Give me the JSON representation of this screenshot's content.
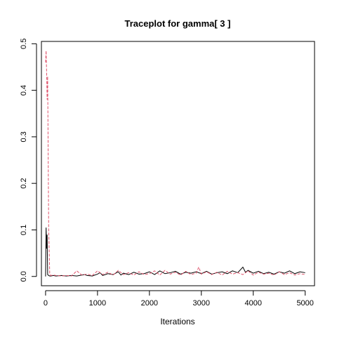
{
  "chart_data": {
    "type": "line",
    "title": "Traceplot for gamma[ 3 ]",
    "xlabel": "Iterations",
    "ylabel": "",
    "xlim": [
      -80,
      5180
    ],
    "ylim": [
      -0.02,
      0.505
    ],
    "x_ticks": [
      0,
      1000,
      2000,
      3000,
      4000,
      5000
    ],
    "x_tick_labels": [
      "0",
      "1000",
      "2000",
      "3000",
      "4000",
      "5000"
    ],
    "y_ticks": [
      0.0,
      0.1,
      0.2,
      0.3,
      0.4,
      0.5
    ],
    "y_tick_labels": [
      "0.0",
      "0.1",
      "0.2",
      "0.3",
      "0.4",
      "0.5"
    ],
    "grid": false,
    "legend": "none",
    "series": [
      {
        "color": "#000000",
        "dash": "solid",
        "x": [
          0,
          10,
          20,
          30,
          40,
          60,
          80,
          100,
          150,
          200,
          300,
          400,
          500,
          600,
          700,
          750,
          800,
          900,
          1000,
          1050,
          1100,
          1200,
          1300,
          1400,
          1450,
          1500,
          1600,
          1700,
          1800,
          1900,
          2000,
          2100,
          2200,
          2300,
          2400,
          2500,
          2600,
          2700,
          2800,
          2900,
          3000,
          3100,
          3200,
          3300,
          3400,
          3500,
          3600,
          3700,
          3800,
          3850,
          3900,
          4000,
          4100,
          4200,
          4300,
          4400,
          4500,
          4600,
          4700,
          4800,
          4900,
          5000
        ],
        "values": [
          0.0,
          0.105,
          0.06,
          0.09,
          0.004,
          0.002,
          0.001,
          0.001,
          0.002,
          0.001,
          0.002,
          0.001,
          0.002,
          0.001,
          0.003,
          0.004,
          0.002,
          0.001,
          0.005,
          0.008,
          0.002,
          0.006,
          0.004,
          0.01,
          0.003,
          0.007,
          0.004,
          0.009,
          0.005,
          0.006,
          0.01,
          0.004,
          0.012,
          0.006,
          0.008,
          0.011,
          0.005,
          0.009,
          0.007,
          0.01,
          0.006,
          0.011,
          0.005,
          0.008,
          0.01,
          0.006,
          0.012,
          0.008,
          0.02,
          0.009,
          0.013,
          0.007,
          0.011,
          0.006,
          0.009,
          0.005,
          0.01,
          0.007,
          0.012,
          0.006,
          0.01,
          0.008
        ]
      },
      {
        "color": "#DF536B",
        "dash": "dashed",
        "x": [
          0,
          10,
          20,
          30,
          40,
          60,
          80,
          100,
          150,
          200,
          300,
          400,
          500,
          600,
          700,
          800,
          900,
          1000,
          1100,
          1200,
          1300,
          1400,
          1500,
          1600,
          1700,
          1800,
          1900,
          2000,
          2100,
          2200,
          2300,
          2400,
          2500,
          2600,
          2700,
          2800,
          2900,
          2950,
          3000,
          3100,
          3200,
          3300,
          3400,
          3500,
          3600,
          3700,
          3800,
          3900,
          4000,
          4100,
          4200,
          4300,
          4400,
          4500,
          4600,
          4700,
          4800,
          4900,
          5000
        ],
        "values": [
          0.46,
          0.485,
          0.44,
          0.38,
          0.43,
          0.1,
          0.005,
          0.002,
          0.003,
          0.002,
          0.001,
          0.002,
          0.001,
          0.012,
          0.003,
          0.005,
          0.002,
          0.012,
          0.004,
          0.009,
          0.003,
          0.013,
          0.004,
          0.008,
          0.003,
          0.01,
          0.004,
          0.006,
          0.012,
          0.003,
          0.013,
          0.005,
          0.009,
          0.003,
          0.011,
          0.004,
          0.007,
          0.02,
          0.005,
          0.01,
          0.004,
          0.009,
          0.003,
          0.011,
          0.005,
          0.008,
          0.004,
          0.012,
          0.003,
          0.009,
          0.005,
          0.007,
          0.003,
          0.01,
          0.004,
          0.008,
          0.003,
          0.006,
          0.004
        ]
      }
    ]
  }
}
